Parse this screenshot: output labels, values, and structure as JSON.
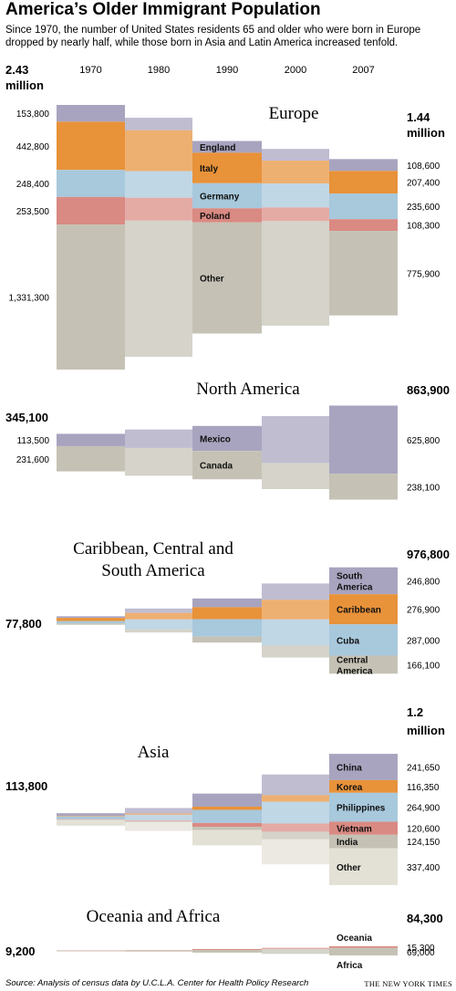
{
  "header": {
    "title": "America’s Older Immigrant Population",
    "subtitle": "Since 1970, the number of United States residents 65 and older who were born in Europe dropped by nearly half, while those born in Asia and Latin America increased tenfold."
  },
  "footer": {
    "source": "Source: Analysis of census data by U.C.L.A. Center for Health Policy Research",
    "credit": "THE NEW YORK TIMES"
  },
  "chart_data": {
    "type": "stacked-bar",
    "years": [
      "1970",
      "1980",
      "1990",
      "2000",
      "2007"
    ],
    "panels": [
      {
        "title": "Europe",
        "total_1970": "2.43\nmillion",
        "total_2007": "1.44\nmillion",
        "series": [
          {
            "name": "England",
            "color": "#a8a4bf",
            "v1970": 153800,
            "v1980": 115000,
            "v1990": 108000,
            "v2000": 108000,
            "v2007": 108600,
            "label1970": "153,800",
            "label2007": "108,600"
          },
          {
            "name": "Italy",
            "color": "#e8923a",
            "v1970": 442800,
            "v1980": 375000,
            "v1990": 280000,
            "v2000": 210000,
            "v2007": 207400,
            "label1970": "442,800",
            "label2007": "207,400"
          },
          {
            "name": "Germany",
            "color": "#a8c8dc",
            "v1970": 248400,
            "v1980": 245000,
            "v1990": 230000,
            "v2000": 220000,
            "v2007": 235600,
            "label1970": "248,400",
            "label2007": "235,600"
          },
          {
            "name": "Poland",
            "color": "#d98a82",
            "v1970": 253500,
            "v1980": 210000,
            "v1990": 130000,
            "v2000": 125000,
            "v2007": 108300,
            "label1970": "253,500",
            "label2007": "108,300"
          },
          {
            "name": "Other",
            "color": "#c5c2b5",
            "v1970": 1331300,
            "v1980": 1250000,
            "v1990": 1020000,
            "v2000": 960000,
            "v2007": 775900,
            "label1970": "1,331,300",
            "label2007": "775,900"
          }
        ]
      },
      {
        "title": "North America",
        "total_1970": "345,100",
        "total_2007": "863,900",
        "series": [
          {
            "name": "Mexico",
            "color": "#a8a4bf",
            "v1970": 113500,
            "v1980": 170000,
            "v1990": 230000,
            "v2000": 430000,
            "v2007": 625800,
            "label1970": "113,500",
            "label2007": "625,800"
          },
          {
            "name": "Canada",
            "color": "#c5c2b5",
            "v1970": 231600,
            "v1980": 255000,
            "v1990": 260000,
            "v2000": 240000,
            "v2007": 238100,
            "label1970": "231,600",
            "label2007": "238,100"
          }
        ]
      },
      {
        "title": "Caribbean, Central and\nSouth America",
        "total_1970": "77,800",
        "total_2007": "976,800",
        "series": [
          {
            "name": "South\nAmerica",
            "color": "#a8a4bf",
            "v1970": 15000,
            "v1980": 40000,
            "v1990": 80000,
            "v2000": 150000,
            "v2007": 246800,
            "label1970": "",
            "label2007": "246,800"
          },
          {
            "name": "Caribbean",
            "color": "#e8923a",
            "v1970": 30000,
            "v1980": 60000,
            "v1990": 110000,
            "v2000": 180000,
            "v2007": 276900,
            "label1970": "",
            "label2007": "276,900"
          },
          {
            "name": "Cuba",
            "color": "#a8c8dc",
            "v1970": 20000,
            "v1980": 90000,
            "v1990": 160000,
            "v2000": 240000,
            "v2007": 287000,
            "label1970": "",
            "label2007": "287,000"
          },
          {
            "name": "Central\nAmerica",
            "color": "#c5c2b5",
            "v1970": 12800,
            "v1980": 30000,
            "v1990": 55000,
            "v2000": 110000,
            "v2007": 166100,
            "label1970": "",
            "label2007": "166,100"
          }
        ]
      },
      {
        "title": "Asia",
        "total_1970": "113,800",
        "total_2007": "1.2\nmillion",
        "series": [
          {
            "name": "China",
            "color": "#a8a4bf",
            "v1970": 25000,
            "v1980": 50000,
            "v1990": 120000,
            "v2000": 190000,
            "v2007": 241650,
            "label1970": "",
            "label2007": "241,650"
          },
          {
            "name": "Korea",
            "color": "#e8923a",
            "v1970": 5000,
            "v1980": 12000,
            "v1990": 30000,
            "v2000": 60000,
            "v2007": 116350,
            "label1970": "",
            "label2007": "116,350"
          },
          {
            "name": "Philippines",
            "color": "#a8c8dc",
            "v1970": 25000,
            "v1980": 50000,
            "v1990": 120000,
            "v2000": 200000,
            "v2007": 264900,
            "label1970": "",
            "label2007": "264,900"
          },
          {
            "name": "Vietnam",
            "color": "#d98a82",
            "v1970": 3000,
            "v1980": 8000,
            "v1990": 35000,
            "v2000": 75000,
            "v2007": 120600,
            "label1970": "",
            "label2007": "120,600"
          },
          {
            "name": "India",
            "color": "#c5c2b5",
            "v1970": 5000,
            "v1980": 10000,
            "v1990": 30000,
            "v2000": 70000,
            "v2007": 124150,
            "label1970": "",
            "label2007": "124,150"
          },
          {
            "name": "Other",
            "color": "#e3e1d6",
            "v1970": 50800,
            "v1980": 80000,
            "v1990": 140000,
            "v2000": 230000,
            "v2007": 337400,
            "label1970": "",
            "label2007": "337,400"
          }
        ]
      },
      {
        "title": "Oceania and Africa",
        "total_1970": "9,200",
        "total_2007": "84,300",
        "series": [
          {
            "name": "Oceania",
            "color": "#d98a82",
            "v1970": 3000,
            "v1980": 5000,
            "v1990": 8000,
            "v2000": 11000,
            "v2007": 15300,
            "label1970": "",
            "label2007": "15,300"
          },
          {
            "name": "Africa",
            "color": "#c5c2b5",
            "v1970": 6200,
            "v1980": 12000,
            "v1990": 25000,
            "v2000": 45000,
            "v2007": 69000,
            "label1970": "",
            "label2007": "69,000"
          }
        ]
      }
    ]
  }
}
